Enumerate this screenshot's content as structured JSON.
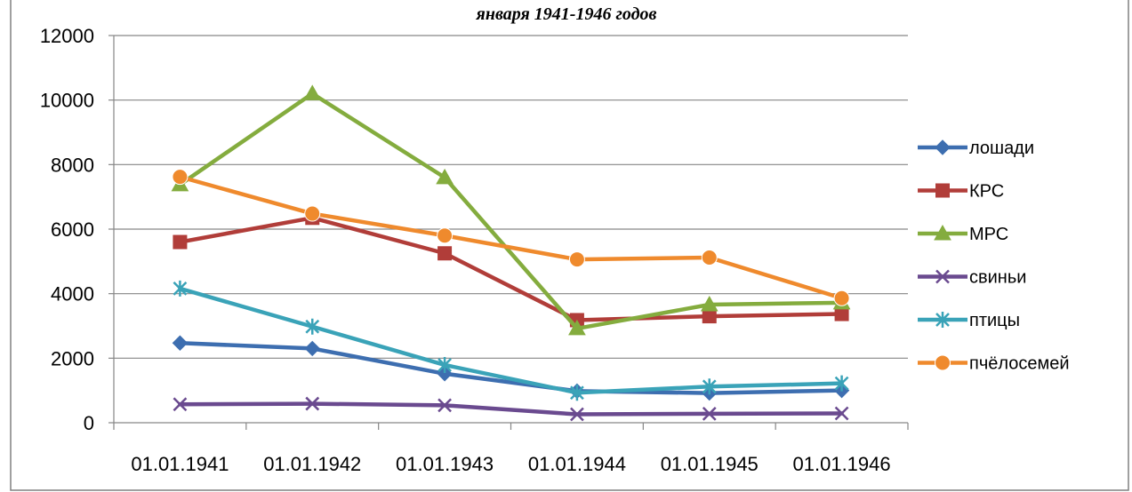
{
  "chart_data": {
    "type": "line",
    "title": "января 1941-1946 годов",
    "xlabel": "",
    "ylabel": "",
    "categories": [
      "01.01.1941",
      "01.01.1942",
      "01.01.1943",
      "01.01.1944",
      "01.01.1945",
      "01.01.1946"
    ],
    "ylim": [
      0,
      12000
    ],
    "yticks": [
      0,
      2000,
      4000,
      6000,
      8000,
      10000,
      12000
    ],
    "grid": "horizontal",
    "legend_position": "right",
    "series": [
      {
        "name": "лошади",
        "color": "#3d6eb0",
        "marker": "diamond",
        "values": [
          2470,
          2300,
          1520,
          980,
          920,
          1000
        ]
      },
      {
        "name": "КРС",
        "color": "#b13d39",
        "marker": "square",
        "values": [
          5600,
          6350,
          5250,
          3180,
          3300,
          3370
        ]
      },
      {
        "name": "МРС",
        "color": "#84ac3e",
        "marker": "triangle",
        "values": [
          7380,
          10200,
          7600,
          2920,
          3660,
          3720
        ]
      },
      {
        "name": "свиньи",
        "color": "#6a4a8f",
        "marker": "x",
        "values": [
          570,
          590,
          540,
          260,
          280,
          290
        ]
      },
      {
        "name": "птицы",
        "color": "#3aa3b8",
        "marker": "asterisk",
        "values": [
          4160,
          2980,
          1790,
          930,
          1120,
          1220
        ]
      },
      {
        "name": "пчёлосемей",
        "color": "#ef8a2d",
        "marker": "circle",
        "values": [
          7620,
          6480,
          5800,
          5060,
          5120,
          3860
        ]
      }
    ]
  }
}
